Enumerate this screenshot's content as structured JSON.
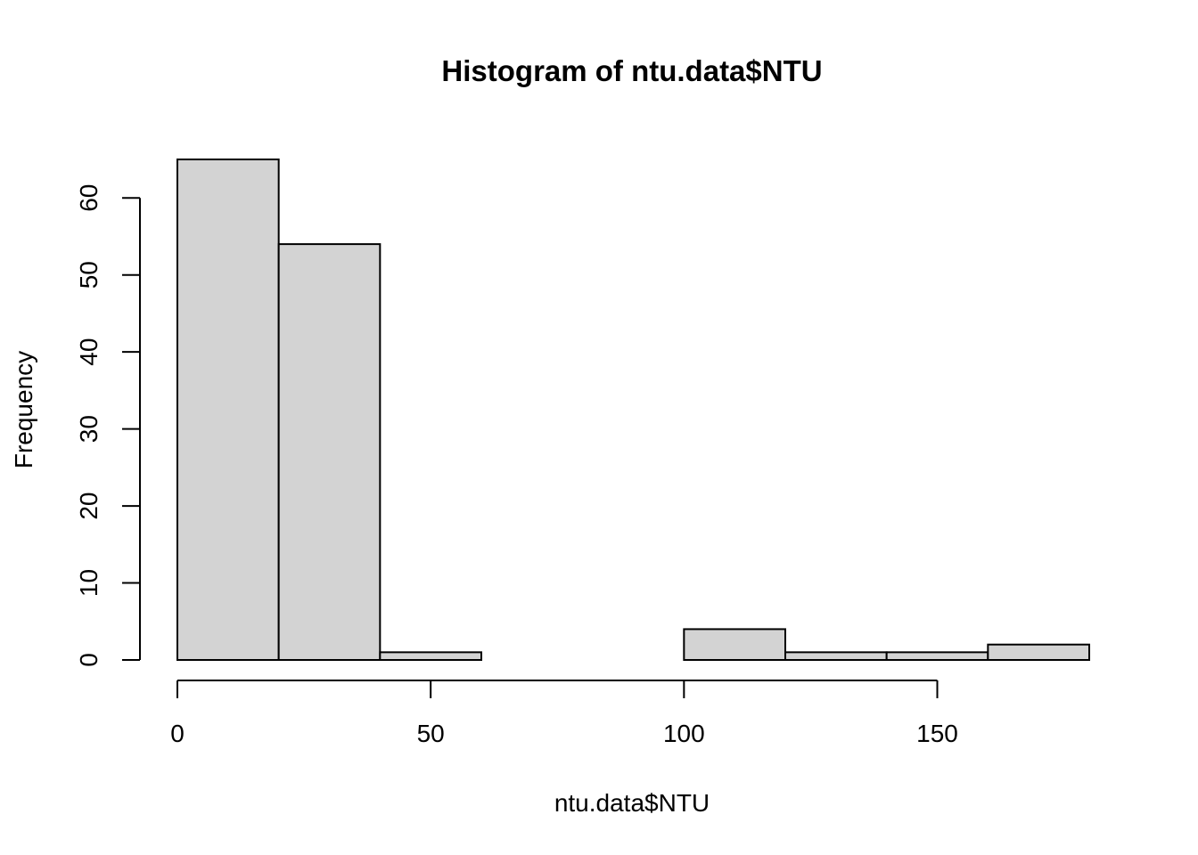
{
  "chart_data": {
    "type": "bar",
    "title": "Histogram of ntu.data$NTU",
    "xlabel": "ntu.data$NTU",
    "ylabel": "Frequency",
    "bins": [
      {
        "start": 0,
        "end": 20,
        "count": 65
      },
      {
        "start": 20,
        "end": 40,
        "count": 54
      },
      {
        "start": 40,
        "end": 60,
        "count": 1
      },
      {
        "start": 60,
        "end": 80,
        "count": 0
      },
      {
        "start": 80,
        "end": 100,
        "count": 0
      },
      {
        "start": 100,
        "end": 120,
        "count": 4
      },
      {
        "start": 120,
        "end": 140,
        "count": 1
      },
      {
        "start": 140,
        "end": 160,
        "count": 1
      },
      {
        "start": 160,
        "end": 180,
        "count": 2
      }
    ],
    "xlim": [
      0,
      180
    ],
    "ylim": [
      0,
      65
    ],
    "x_ticks": [
      0,
      50,
      100,
      150
    ],
    "y_ticks": [
      0,
      10,
      20,
      30,
      40,
      50,
      60
    ],
    "bar_fill": "#d3d3d3",
    "bar_stroke": "#000000",
    "grid": false,
    "legend": "none"
  }
}
